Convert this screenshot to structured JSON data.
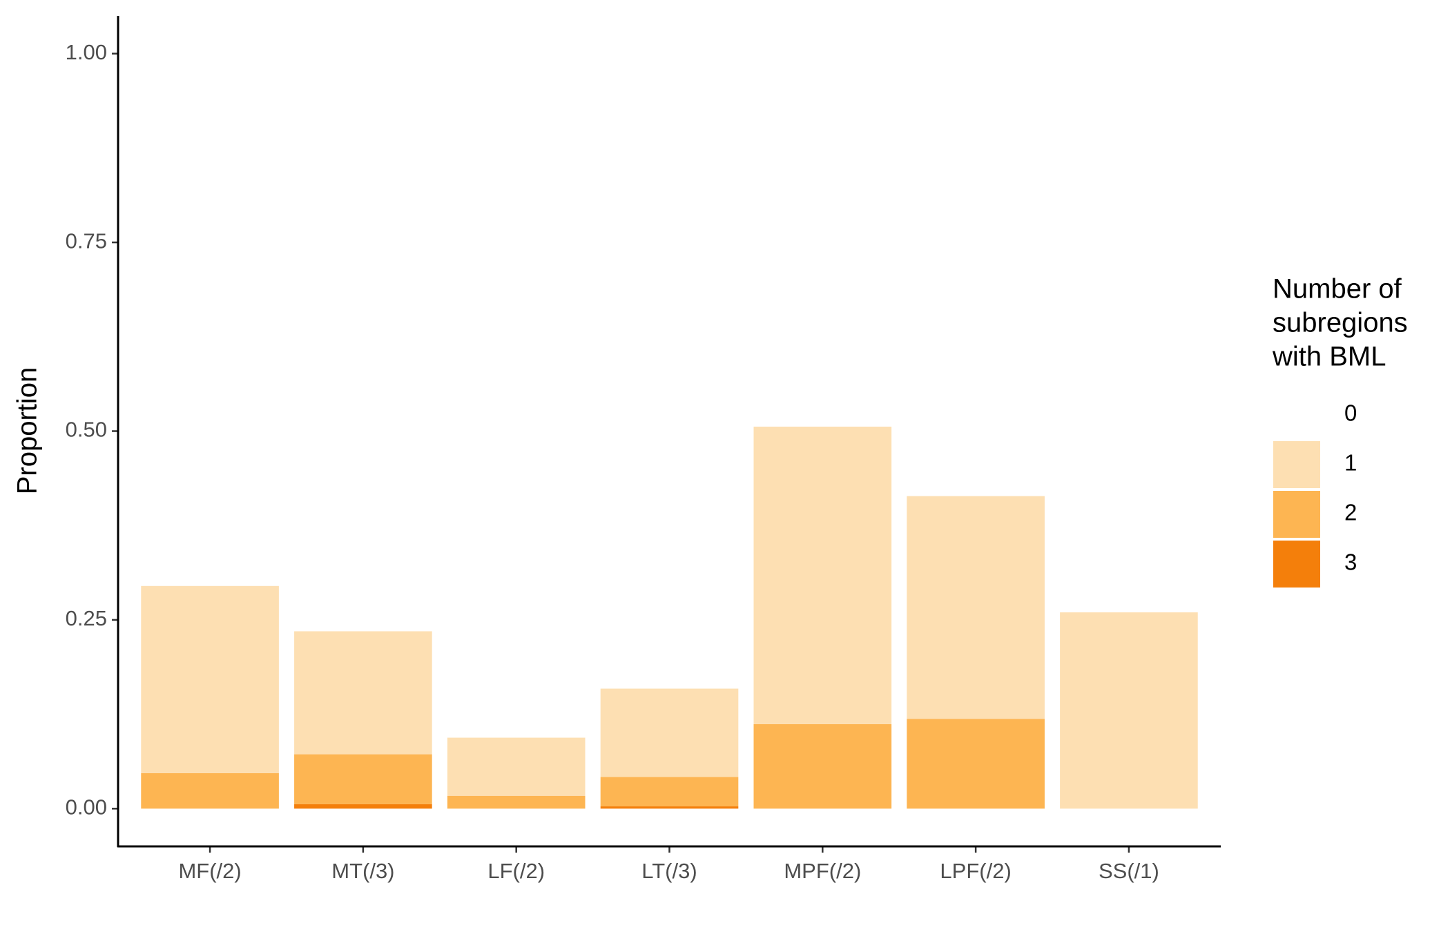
{
  "chart_data": {
    "type": "stacked_bar",
    "y_label": "Proportion",
    "legend_title": [
      "Number of",
      "subregions",
      "with BML"
    ],
    "categories": [
      "MF(/2)",
      "MT(/3)",
      "LF(/2)",
      "LT(/3)",
      "MPF(/2)",
      "LPF(/2)",
      "SS(/1)"
    ],
    "series": [
      {
        "name": "0",
        "color": "#ffffff",
        "values": [
          0.705,
          0.765,
          0.906,
          0.841,
          0.494,
          0.586,
          0.74
        ]
      },
      {
        "name": "1",
        "color": "#fddfb2",
        "values": [
          0.248,
          0.163,
          0.077,
          0.117,
          0.394,
          0.295,
          0.26
        ]
      },
      {
        "name": "2",
        "color": "#fdb552",
        "values": [
          0.047,
          0.066,
          0.017,
          0.039,
          0.112,
          0.119,
          0
        ]
      },
      {
        "name": "3",
        "color": "#f47f0b",
        "values": [
          0,
          0.006,
          0,
          0.003,
          0,
          0,
          0
        ]
      }
    ],
    "ylim": [
      -0.05,
      1.05
    ],
    "yticks": [
      {
        "value": 0,
        "label": "0.00"
      },
      {
        "value": 0.25,
        "label": "0.25"
      },
      {
        "value": 0.5,
        "label": "0.50"
      },
      {
        "value": 0.75,
        "label": "0.75"
      },
      {
        "value": 1,
        "label": "1.00"
      }
    ],
    "grid": false
  }
}
